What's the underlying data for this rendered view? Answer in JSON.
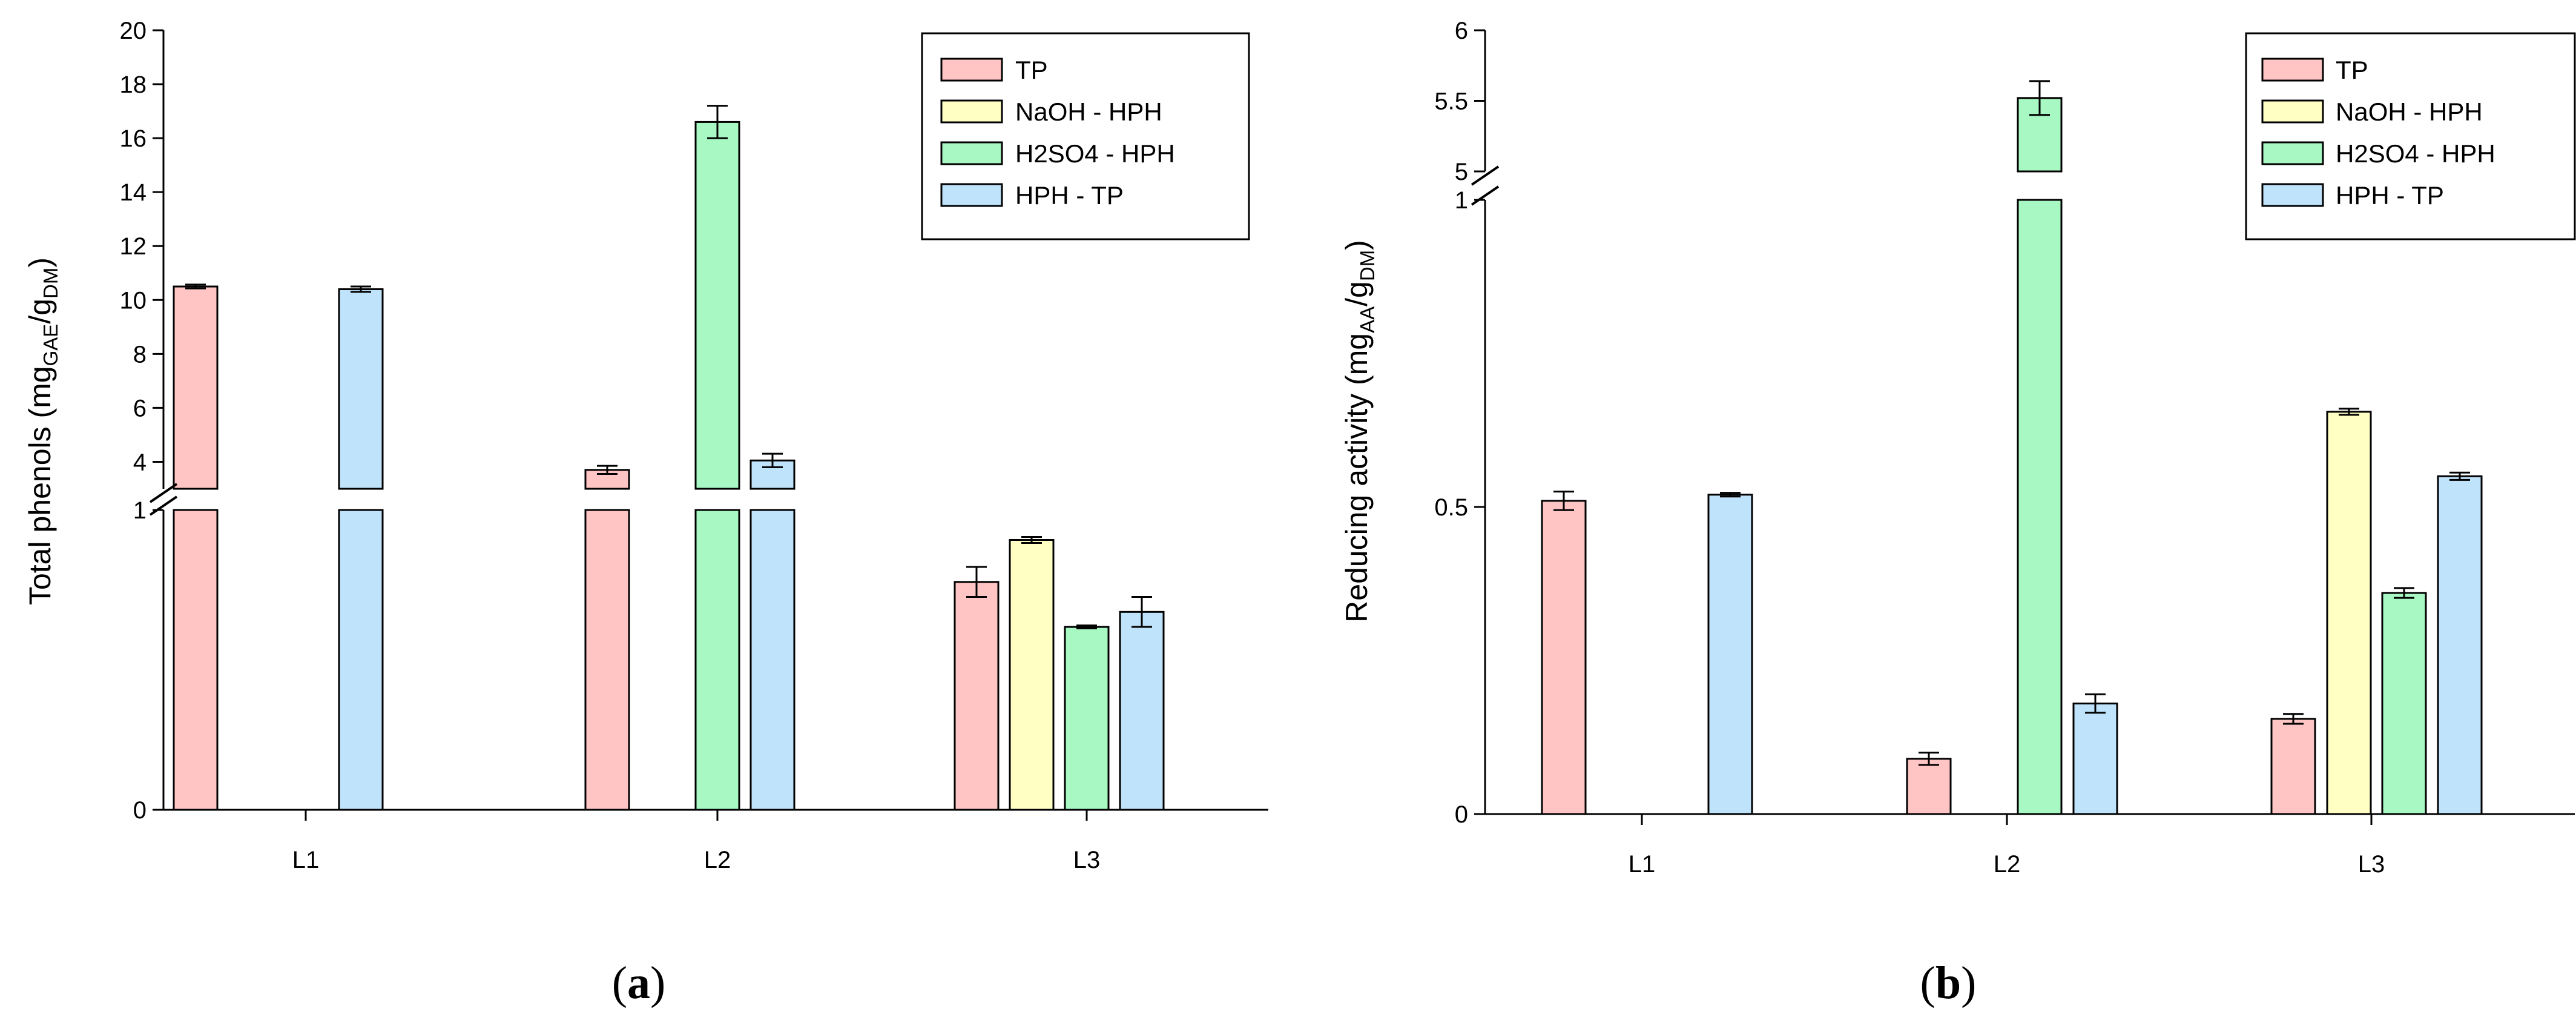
{
  "legend": [
    "TP",
    "NaOH - HPH",
    "H2SO4 - HPH",
    "HPH - TP"
  ],
  "colors": {
    "TP": "#ffc4c4",
    "NaOH - HPH": "#ffffc4",
    "H2SO4 - HPH": "#a8f8c4",
    "HPH - TP": "#bfe3fb"
  },
  "chart_data": [
    {
      "type": "bar",
      "panel": "(a)",
      "panel_open": "(",
      "panel_letter": "a",
      "panel_close": ")",
      "title": "",
      "xlabel": "",
      "ylabel": "Total phenols (mg",
      "ylabel_sub1": "GAE",
      "ylabel_mid": "/g",
      "ylabel_sub2": "DM",
      "ylabel_end": ")",
      "categories": [
        "L1",
        "L2",
        "L3"
      ],
      "y_axis_break": {
        "lower_range": [
          0,
          1
        ],
        "upper_range": [
          3,
          20
        ]
      },
      "lower_ticks": [
        "0",
        "1"
      ],
      "upper_ticks": [
        "4",
        "6",
        "8",
        "10",
        "12",
        "14",
        "16",
        "18",
        "20"
      ],
      "series": [
        {
          "name": "TP",
          "values": [
            10.5,
            3.7,
            0.76
          ],
          "errors": [
            0.07,
            0.15,
            0.05
          ]
        },
        {
          "name": "NaOH - HPH",
          "values": [
            null,
            null,
            0.9
          ],
          "errors": [
            null,
            null,
            0.01
          ]
        },
        {
          "name": "H2SO4 - HPH",
          "values": [
            null,
            16.6,
            0.61
          ],
          "errors": [
            null,
            0.6,
            0.005
          ]
        },
        {
          "name": "HPH - TP",
          "values": [
            10.4,
            4.05,
            0.66
          ],
          "errors": [
            0.1,
            0.25,
            0.05
          ]
        }
      ],
      "legend_position": "top-right"
    },
    {
      "type": "bar",
      "panel": "(b)",
      "panel_open": "(",
      "panel_letter": "b",
      "panel_close": ")",
      "title": "",
      "xlabel": "",
      "ylabel": "Reducing activity (mg",
      "ylabel_sub1": "AA",
      "ylabel_mid": "/g",
      "ylabel_sub2": "DM",
      "ylabel_end": ")",
      "categories": [
        "L1",
        "L2",
        "L3"
      ],
      "y_axis_break": {
        "lower_range": [
          0,
          1
        ],
        "upper_range": [
          5,
          6
        ]
      },
      "lower_ticks": [
        "0",
        "0.5",
        "1"
      ],
      "upper_ticks": [
        "5",
        "5.5",
        "6"
      ],
      "series": [
        {
          "name": "TP",
          "values": [
            0.51,
            0.09,
            0.155
          ],
          "errors": [
            0.015,
            0.01,
            0.008
          ]
        },
        {
          "name": "NaOH - HPH",
          "values": [
            null,
            null,
            0.655
          ],
          "errors": [
            null,
            null,
            0.005
          ]
        },
        {
          "name": "H2SO4 - HPH",
          "values": [
            null,
            5.52,
            0.36
          ],
          "errors": [
            null,
            0.12,
            0.008
          ]
        },
        {
          "name": "HPH - TP",
          "values": [
            0.52,
            0.18,
            0.55
          ],
          "errors": [
            0.003,
            0.015,
            0.006
          ]
        }
      ],
      "legend_position": "top-right"
    }
  ]
}
